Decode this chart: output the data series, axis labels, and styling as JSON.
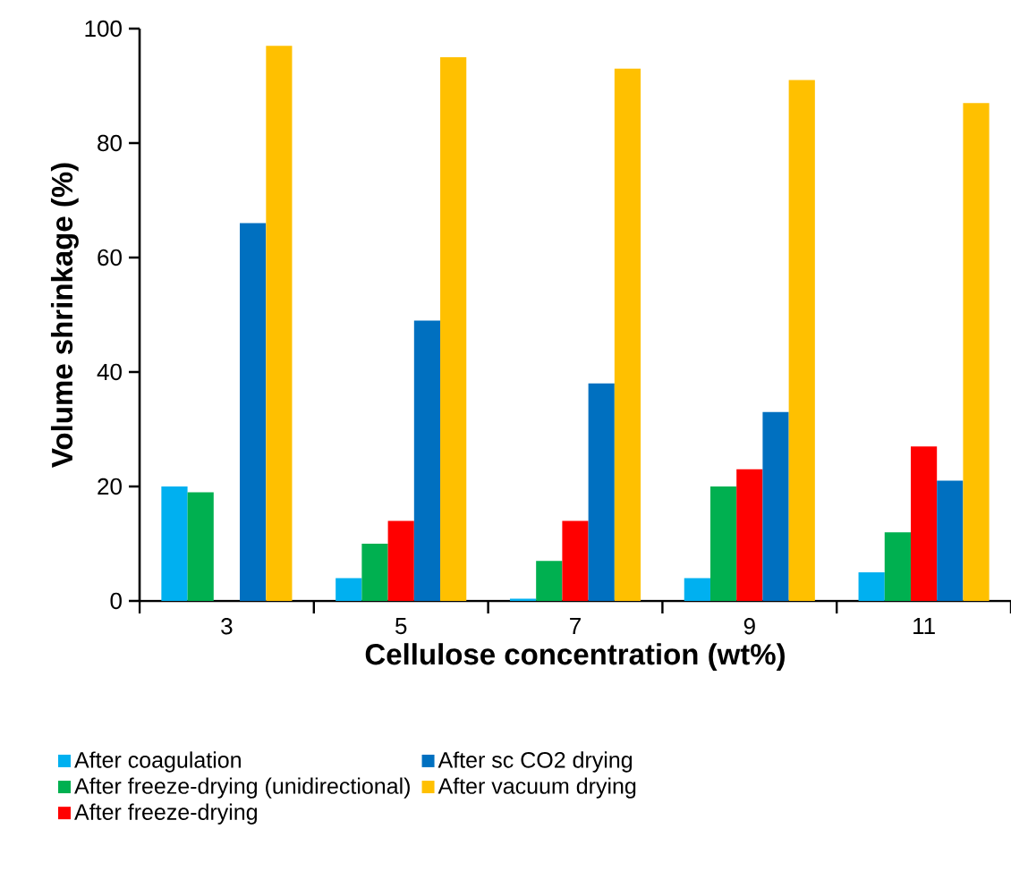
{
  "chart_data": {
    "type": "bar",
    "xlabel": "Cellulose concentration (wt%)",
    "ylabel": "Volume shrinkage (%)",
    "categories": [
      "3",
      "5",
      "7",
      "9",
      "11"
    ],
    "series": [
      {
        "name": "After coagulation",
        "color": "#00b0f0",
        "values": [
          20,
          4,
          0.4,
          4,
          5
        ]
      },
      {
        "name": "After freeze-drying (unidirectional)",
        "color": "#00b050",
        "values": [
          19,
          10,
          7,
          20,
          12
        ]
      },
      {
        "name": "After freeze-drying",
        "color": "#ff0000",
        "values": [
          null,
          14,
          14,
          23,
          27
        ]
      },
      {
        "name": "After sc CO2 drying",
        "color": "#0070c0",
        "values": [
          66,
          49,
          38,
          33,
          21
        ]
      },
      {
        "name": "After vacuum drying",
        "color": "#ffc000",
        "values": [
          97,
          95,
          93,
          91,
          87
        ]
      }
    ],
    "ylim": [
      0,
      100
    ],
    "yticks": [
      0,
      20,
      40,
      60,
      80,
      100
    ],
    "grid": false,
    "legend": "bottom"
  }
}
